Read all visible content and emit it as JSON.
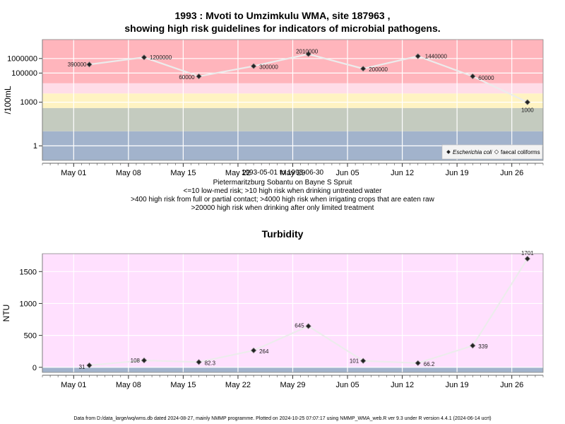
{
  "titles": {
    "line1": "1993 : Mvoti to Umzimkulu WMA, site 187963 ,",
    "line2": "showing high risk guidelines for indicators of microbial pathogens.",
    "info1": "1993-05-01 to 1993-06-30",
    "info2": "Pietermaritzburg Sobantu on Bayne S Spruit",
    "info3": "<=10 low-med risk; >10 high risk when drinking untreated water",
    "info4": ">400 high risk from full or partial contact; >4000 high risk when irrigating crops that are eaten raw",
    "info5": ">20000 high risk when drinking after only limited treatment",
    "turbidity": "Turbidity",
    "footer": "Data from D:/data_large/wq/wms.db dated 2024-08-27, mainly NMMP programme. Plotted on 2024-10-25 07:07:17 using NMMP_WMA_web.R ver 9.3 under R version 4.4.1 (2024-06-14 ucrt)"
  },
  "chart_data": [
    {
      "type": "line",
      "ylabel": "/100mL",
      "yscale": "log",
      "ylim": [
        0.1,
        20000000
      ],
      "yticks": [
        "1",
        "1000",
        "100000",
        "1000000"
      ],
      "x_start": "1993-04-27",
      "x_end": "1993-06-30",
      "xticks": [
        "May 01",
        "May 08",
        "May 15",
        "May 22",
        "May 29",
        "Jun 05",
        "Jun 12",
        "Jun 19",
        "Jun 26"
      ],
      "bands": [
        {
          "from": 0.1,
          "to": 10,
          "color": "#a2b3cc"
        },
        {
          "from": 10,
          "to": 400,
          "color": "#c4cbbf"
        },
        {
          "from": 400,
          "to": 4000,
          "color": "#fff3c2"
        },
        {
          "from": 4000,
          "to": 20000,
          "color": "#ffdde8"
        },
        {
          "from": 20000,
          "to": 20000000,
          "color": "#ffb5bc"
        }
      ],
      "series": [
        {
          "name": "Escherichia coli",
          "dates": [
            "1993-05-03",
            "1993-05-10",
            "1993-05-17",
            "1993-05-24",
            "1993-05-31",
            "1993-06-07",
            "1993-06-14",
            "1993-06-21",
            "1993-06-28"
          ],
          "values": [
            390000,
            1200000,
            60000,
            300000,
            2010000,
            200000,
            1440000,
            60000,
            1000
          ],
          "labels": [
            "390000",
            "1200000",
            "60000",
            "300000",
            "2010000",
            "200000",
            "1440000",
            "60000",
            "1000"
          ]
        }
      ],
      "legend": {
        "items": [
          "Escherichia coli",
          "faecal coliforms"
        ],
        "position": "bottom-right"
      }
    },
    {
      "type": "line",
      "title": "Turbidity",
      "ylabel": "NTU",
      "ylim": [
        -80,
        1780
      ],
      "yticks": [
        "0",
        "500",
        "1000",
        "1500"
      ],
      "x_start": "1993-04-27",
      "x_end": "1993-06-30",
      "xticks": [
        "May 01",
        "May 08",
        "May 15",
        "May 22",
        "May 29",
        "Jun 05",
        "Jun 12",
        "Jun 19",
        "Jun 26"
      ],
      "series": [
        {
          "name": "Turbidity",
          "dates": [
            "1993-05-03",
            "1993-05-10",
            "1993-05-17",
            "1993-05-24",
            "1993-05-31",
            "1993-06-07",
            "1993-06-14",
            "1993-06-21",
            "1993-06-28"
          ],
          "values": [
            31,
            108,
            82.3,
            264,
            645,
            101,
            66.2,
            339,
            1701
          ],
          "labels": [
            "31",
            "108",
            "82.3",
            "264",
            "645",
            "101",
            "66.2",
            "339",
            "1701"
          ]
        }
      ]
    }
  ]
}
